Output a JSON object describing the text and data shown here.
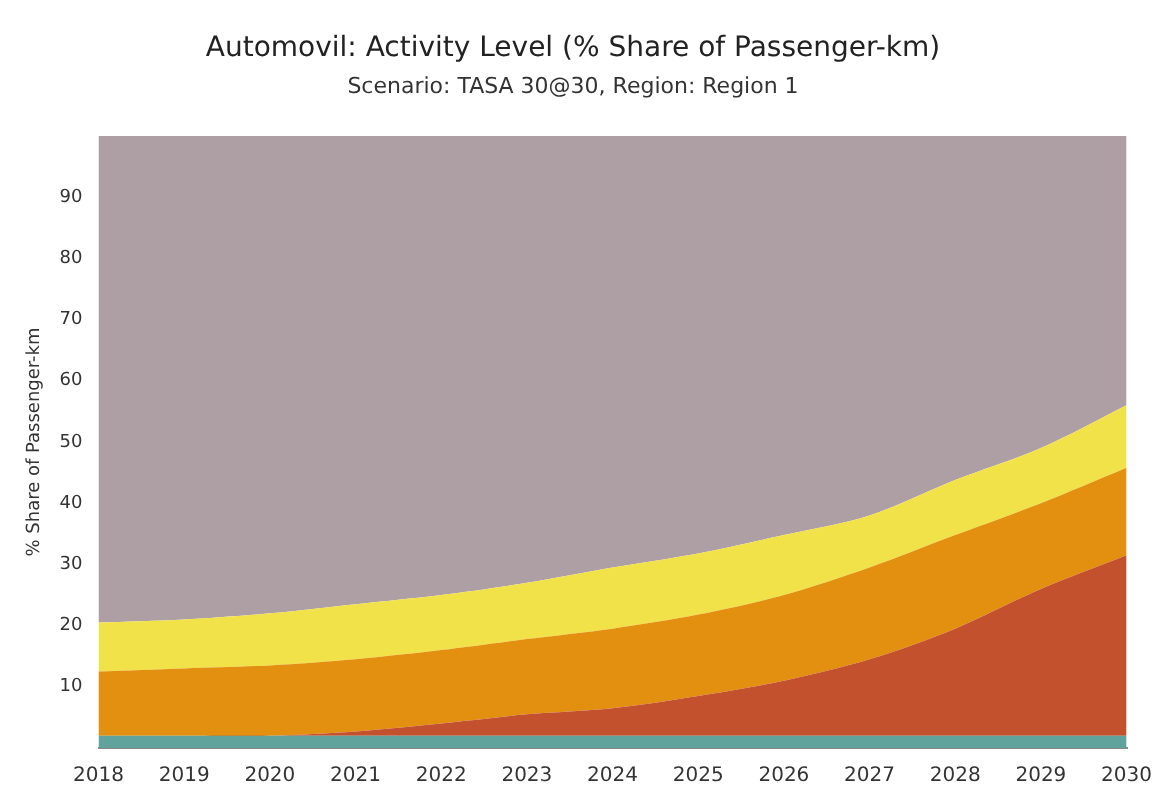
{
  "chart_data": {
    "type": "area",
    "title": "Automovil: Activity Level (% Share of Passenger-km)",
    "subtitle": "Scenario: TASA 30@30, Region: Region 1",
    "ylabel": "% Share of Passenger-km",
    "categories": [
      "2018",
      "2019",
      "2020",
      "2021",
      "2022",
      "2023",
      "2024",
      "2025",
      "2026",
      "2027",
      "2028",
      "2029",
      "2030"
    ],
    "stacked": true,
    "ylim": [
      0,
      100
    ],
    "yticks": [
      10,
      20,
      30,
      40,
      50,
      60,
      70,
      80,
      90
    ],
    "grid": false,
    "legend": false,
    "series": [
      {
        "color": "#5fa39c",
        "values": [
          2,
          2,
          2,
          2,
          2,
          2,
          2,
          2,
          2,
          2,
          2,
          2,
          2
        ]
      },
      {
        "color": "#c4512e",
        "values": [
          0,
          0,
          0,
          0.7,
          2,
          3.5,
          4.5,
          6.5,
          9,
          12.5,
          17.5,
          24,
          29.5
        ]
      },
      {
        "color": "#e38f10",
        "values": [
          10.5,
          11,
          11.5,
          11.8,
          12,
          12.3,
          13,
          13.3,
          14,
          15,
          15.3,
          14,
          14.3
        ]
      },
      {
        "color": "#f2e24a",
        "values": [
          8,
          8,
          8.5,
          9,
          9,
          9.2,
          10,
          10,
          9.8,
          8.5,
          9,
          9,
          10.2
        ]
      },
      {
        "color": "#ad9fa3",
        "values": [
          79.5,
          79,
          78,
          76.5,
          75,
          73,
          70.5,
          68.2,
          65.2,
          62,
          56.2,
          51,
          44
        ]
      }
    ]
  }
}
